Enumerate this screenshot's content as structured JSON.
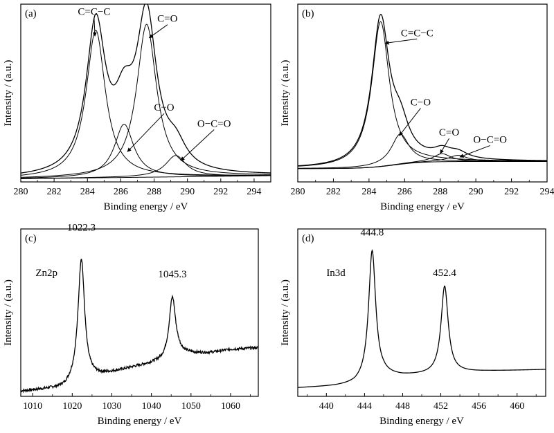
{
  "charts": [
    {
      "type": "line",
      "panel_label": "(a)",
      "xlabel": "Binding energy / eV",
      "ylabel": "Intensity / (a.u.)",
      "xlim": [
        280,
        295
      ],
      "xticks": [
        280,
        282,
        284,
        286,
        288,
        290,
        292,
        294
      ],
      "ylim": [
        0,
        1
      ],
      "reverse_x": false,
      "baseline": {
        "type": "linear",
        "y0": 0.018,
        "y1": 0.035
      },
      "peaks": [
        {
          "center": 284.5,
          "height": 0.83,
          "fwhm": 1.4
        },
        {
          "center": 286.2,
          "height": 0.3,
          "fwhm": 1.4
        },
        {
          "center": 287.55,
          "height": 0.86,
          "fwhm": 1.45
        },
        {
          "center": 289.3,
          "height": 0.12,
          "fwhm": 1.5
        }
      ],
      "annotations": [
        {
          "text": "C=C−C",
          "tx": 284.4,
          "ty": 0.94,
          "ax": 284.45,
          "ay": 0.82
        },
        {
          "text": "C=O",
          "tx": 288.8,
          "ty": 0.9,
          "ax": 287.7,
          "ay": 0.81
        },
        {
          "text": "C−O",
          "tx": 288.6,
          "ty": 0.4,
          "ax": 286.4,
          "ay": 0.17
        },
        {
          "text": "O−C=O",
          "tx": 291.6,
          "ty": 0.31,
          "ax": 289.6,
          "ay": 0.12
        }
      ]
    },
    {
      "type": "line",
      "panel_label": "(b)",
      "xlabel": "Binding energy / eV",
      "ylabel": "Intensity / (a.u.)",
      "xlim": [
        280,
        294
      ],
      "xticks": [
        280,
        282,
        284,
        286,
        288,
        290,
        292,
        294
      ],
      "ylim": [
        0,
        1
      ],
      "reverse_x": false,
      "baseline": {
        "type": "sigmoid",
        "low": 0.075,
        "high": 0.115,
        "center": 285.4,
        "width": 0.8
      },
      "peaks": [
        {
          "center": 284.65,
          "height": 0.815,
          "fwhm": 1.2
        },
        {
          "center": 285.75,
          "height": 0.17,
          "fwhm": 1.2
        },
        {
          "center": 288.1,
          "height": 0.045,
          "fwhm": 1.2
        },
        {
          "center": 289.0,
          "height": 0.035,
          "fwhm": 1.3
        }
      ],
      "annotations": [
        {
          "text": "C=C−C",
          "tx": 286.7,
          "ty": 0.82,
          "ax": 284.9,
          "ay": 0.78
        },
        {
          "text": "C−O",
          "tx": 286.9,
          "ty": 0.43,
          "ax": 285.7,
          "ay": 0.26
        },
        {
          "text": "C=O",
          "tx": 288.5,
          "ty": 0.26,
          "ax": 288.0,
          "ay": 0.16
        },
        {
          "text": "O−C=O",
          "tx": 290.8,
          "ty": 0.22,
          "ax": 289.1,
          "ay": 0.14
        }
      ]
    },
    {
      "type": "line",
      "panel_label": "(c)",
      "xlabel": "Binding energy / eV",
      "ylabel": "Intensity / (a.u.)",
      "xlim": [
        1007,
        1067
      ],
      "xticks": [
        1010,
        1020,
        1030,
        1040,
        1050,
        1060
      ],
      "ylim": [
        0,
        1
      ],
      "reverse_x": false,
      "baseline": {
        "type": "piecewise",
        "points": [
          [
            1007,
            0.03
          ],
          [
            1018,
            0.05
          ],
          [
            1021,
            0.09
          ],
          [
            1024,
            0.1
          ],
          [
            1025,
            0.11
          ],
          [
            1035,
            0.17
          ],
          [
            1043,
            0.21
          ],
          [
            1047,
            0.25
          ],
          [
            1055,
            0.26
          ],
          [
            1060,
            0.28
          ],
          [
            1067,
            0.29
          ]
        ]
      },
      "noise": 0.008,
      "peaks": [
        {
          "center": 1022.3,
          "height": 0.73,
          "fwhm": 2.0
        },
        {
          "center": 1045.3,
          "height": 0.36,
          "fwhm": 2.0
        }
      ],
      "annotations": [
        {
          "text": "1022.3",
          "tx": 1022.3,
          "ty": 0.99
        },
        {
          "text": "1045.3",
          "tx": 1045.3,
          "ty": 0.71
        },
        {
          "text": "Zn2p",
          "tx": 1013.5,
          "ty": 0.72
        }
      ]
    },
    {
      "type": "line",
      "panel_label": "(d)",
      "xlabel": "Binding energy / eV",
      "ylabel": "Intensity / (a.u.)",
      "xlim": [
        437,
        463
      ],
      "xticks": [
        440,
        444,
        448,
        452,
        456,
        460
      ],
      "ylim": [
        0,
        1
      ],
      "reverse_x": false,
      "baseline": {
        "type": "piecewise",
        "points": [
          [
            437,
            0.05
          ],
          [
            441,
            0.06
          ],
          [
            443,
            0.07
          ],
          [
            446,
            0.12
          ],
          [
            448,
            0.12
          ],
          [
            451,
            0.13
          ],
          [
            453,
            0.14
          ],
          [
            457,
            0.15
          ],
          [
            463,
            0.16
          ]
        ]
      },
      "peaks": [
        {
          "center": 444.8,
          "height": 0.77,
          "fwhm": 0.9
        },
        {
          "center": 452.4,
          "height": 0.52,
          "fwhm": 0.9
        }
      ],
      "annotations": [
        {
          "text": "444.8",
          "tx": 444.8,
          "ty": 0.96
        },
        {
          "text": "452.4",
          "tx": 452.4,
          "ty": 0.72
        },
        {
          "text": "In3d",
          "tx": 441.0,
          "ty": 0.72
        }
      ]
    }
  ]
}
